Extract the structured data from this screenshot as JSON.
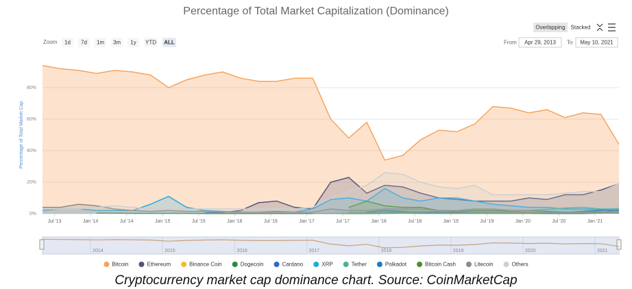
{
  "chart_data": {
    "type": "area",
    "title": "Percentage of Total Market Capitalization (Dominance)",
    "y_label": "Percentage of Total Market Cap",
    "toolbar": {
      "mode_buttons": [
        "Overlapping",
        "Stacked"
      ],
      "zoom_label": "Zoom",
      "zoom_buttons": [
        "1d",
        "7d",
        "1m",
        "3m",
        "1y",
        "YTD",
        "ALL"
      ],
      "from_label": "From",
      "from": "Apr 29, 2013",
      "to_label": "To",
      "to": "May 10, 2021"
    },
    "x": [
      "2013-05",
      "2013-08",
      "2013-11",
      "2014-02",
      "2014-05",
      "2014-08",
      "2014-11",
      "2015-02",
      "2015-05",
      "2015-08",
      "2015-11",
      "2016-02",
      "2016-05",
      "2016-08",
      "2016-11",
      "2017-02",
      "2017-05",
      "2017-08",
      "2017-11",
      "2018-02",
      "2018-05",
      "2018-08",
      "2018-11",
      "2019-02",
      "2019-05",
      "2019-08",
      "2019-11",
      "2020-02",
      "2020-05",
      "2020-08",
      "2020-11",
      "2021-02",
      "2021-05"
    ],
    "xlim": [
      "2013-05",
      "2021-05"
    ],
    "xticks": [
      {
        "value": "2013-07",
        "label": "Jul '13"
      },
      {
        "value": "2014-01",
        "label": "Jan '14"
      },
      {
        "value": "2014-07",
        "label": "Jul '14"
      },
      {
        "value": "2015-01",
        "label": "Jan '15"
      },
      {
        "value": "2015-07",
        "label": "Jul '15"
      },
      {
        "value": "2016-01",
        "label": "Jan '16"
      },
      {
        "value": "2016-07",
        "label": "Jul '16"
      },
      {
        "value": "2017-01",
        "label": "Jan '17"
      },
      {
        "value": "2017-07",
        "label": "Jul '17"
      },
      {
        "value": "2018-01",
        "label": "Jan '18"
      },
      {
        "value": "2018-07",
        "label": "Jul '18"
      },
      {
        "value": "2019-01",
        "label": "Jan '19"
      },
      {
        "value": "2019-07",
        "label": "Jul '19"
      },
      {
        "value": "2020-01",
        "label": "Jan '20"
      },
      {
        "value": "2020-07",
        "label": "Jul '20"
      },
      {
        "value": "2021-01",
        "label": "Jan '21"
      }
    ],
    "ylim": [
      0,
      100
    ],
    "yticks": [
      {
        "value": 0,
        "label": "0%"
      },
      {
        "value": 20,
        "label": "20%"
      },
      {
        "value": 40,
        "label": "40%"
      },
      {
        "value": 60,
        "label": "60%"
      },
      {
        "value": 80,
        "label": "80%"
      }
    ],
    "grid": true,
    "series": [
      {
        "name": "Bitcoin",
        "color": "#f7a35c",
        "values": [
          94,
          92,
          91,
          89,
          91,
          90,
          88,
          80,
          85,
          88,
          90,
          86,
          84,
          84,
          86,
          86,
          60,
          48,
          58,
          34,
          37,
          47,
          53,
          52,
          57,
          68,
          67,
          64,
          66,
          61,
          64,
          63,
          44
        ]
      },
      {
        "name": "Ethereum",
        "color": "#54547a",
        "values": [
          null,
          null,
          null,
          null,
          null,
          null,
          null,
          null,
          null,
          0.5,
          0.8,
          2,
          7,
          8,
          4,
          3,
          20,
          23,
          13,
          18,
          17,
          13,
          10,
          9,
          8,
          8,
          8,
          10,
          9,
          12,
          12,
          15,
          19
        ]
      },
      {
        "name": "Binance Coin",
        "color": "#f3ba2f",
        "values": [
          null,
          null,
          null,
          null,
          null,
          null,
          null,
          null,
          null,
          null,
          null,
          null,
          null,
          null,
          null,
          null,
          null,
          0.05,
          0.1,
          0.4,
          0.6,
          0.4,
          0.6,
          0.8,
          1.2,
          1.2,
          1,
          1,
          1,
          1,
          0.8,
          1.2,
          4
        ]
      },
      {
        "name": "Dogecoin",
        "color": "#2b8a3e",
        "values": [
          null,
          null,
          null,
          0.4,
          0.3,
          0.2,
          0.2,
          0.2,
          0.2,
          0.1,
          0.1,
          0.1,
          0.1,
          0.1,
          0.1,
          0.1,
          0.1,
          0.1,
          0.1,
          0.2,
          0.3,
          0.2,
          0.2,
          0.2,
          0.2,
          0.2,
          0.2,
          0.2,
          0.1,
          0.1,
          0.1,
          0.4,
          3
        ]
      },
      {
        "name": "Cardano",
        "color": "#2e6bc6",
        "values": [
          null,
          null,
          null,
          null,
          null,
          null,
          null,
          null,
          null,
          null,
          null,
          null,
          null,
          null,
          null,
          null,
          null,
          null,
          1,
          2,
          1.5,
          1,
          0.7,
          0.4,
          0.4,
          0.3,
          0.3,
          0.3,
          0.3,
          0.5,
          0.7,
          2,
          3
        ]
      },
      {
        "name": "XRP",
        "color": "#23a9e1",
        "values": [
          2,
          3,
          3,
          2,
          2,
          2,
          6,
          11,
          4,
          2,
          1.5,
          1,
          1,
          1.5,
          1,
          3,
          9,
          10,
          8,
          16,
          10,
          8,
          10,
          10,
          8,
          6,
          5,
          4,
          4,
          3,
          3,
          3,
          3
        ]
      },
      {
        "name": "Tether",
        "color": "#50af95",
        "values": [
          null,
          null,
          null,
          null,
          null,
          null,
          null,
          null,
          null,
          null,
          null,
          null,
          null,
          null,
          null,
          0.1,
          0.1,
          0.3,
          0.6,
          0.7,
          1.1,
          1.2,
          1.5,
          1.8,
          2,
          2,
          1.8,
          2,
          2.8,
          3.6,
          4,
          3,
          2
        ]
      },
      {
        "name": "Polkadot",
        "color": "#1f7bbf",
        "values": [
          null,
          null,
          null,
          null,
          null,
          null,
          null,
          null,
          null,
          null,
          null,
          null,
          null,
          null,
          null,
          null,
          null,
          null,
          null,
          null,
          null,
          null,
          null,
          null,
          null,
          null,
          null,
          null,
          null,
          0.8,
          1.5,
          2.5,
          2
        ]
      },
      {
        "name": "Bitcoin Cash",
        "color": "#4d8f30",
        "values": [
          null,
          null,
          null,
          null,
          null,
          null,
          null,
          null,
          null,
          null,
          null,
          null,
          null,
          null,
          null,
          null,
          null,
          4,
          8,
          5,
          4,
          4,
          2,
          1,
          2,
          2,
          1.6,
          2,
          1.5,
          1,
          1,
          0.7,
          1
        ]
      },
      {
        "name": "Litecoin",
        "color": "#8a8a8a",
        "values": [
          4,
          4,
          6,
          5,
          3,
          2,
          1.5,
          2,
          1.5,
          1.5,
          1,
          1,
          1,
          1,
          1,
          1,
          3,
          2,
          2,
          3,
          3,
          3,
          2,
          2,
          3,
          3,
          2,
          2,
          1,
          1,
          1,
          1,
          1
        ]
      },
      {
        "name": "Others",
        "color": "#cfcfcf",
        "values": [
          3,
          3,
          3,
          4,
          5,
          4,
          3,
          3,
          3,
          3,
          3,
          3,
          3,
          3,
          3,
          4,
          10,
          14,
          18,
          26,
          25,
          20,
          17,
          16,
          18,
          12,
          12,
          12,
          12,
          13,
          14,
          14,
          19
        ]
      }
    ],
    "navigator": {
      "xticks": [
        2014,
        2015,
        2016,
        2017,
        2018,
        2019,
        2020,
        2021
      ]
    }
  },
  "caption": "Cryptocurrency market cap dominance chart. Source: CoinMarketCap"
}
